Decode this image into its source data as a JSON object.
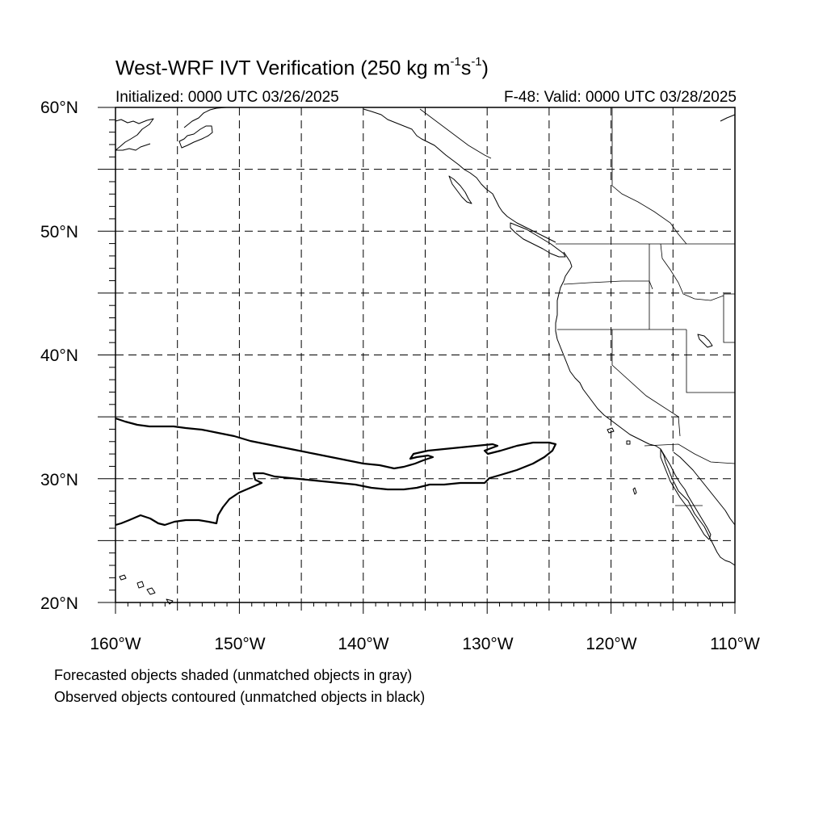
{
  "title": {
    "main": "West-WRF IVT Verification (250 kg m",
    "exp1": "-1",
    "mid": "s",
    "exp2": "-1",
    "end": ")"
  },
  "initialized": "Initialized: 0000 UTC 03/26/2025",
  "valid": "F-48: Valid: 0000 UTC 03/28/2025",
  "lat_labels": [
    "60°N",
    "50°N",
    "40°N",
    "30°N",
    "20°N"
  ],
  "lon_labels": [
    "160°W",
    "150°W",
    "140°W",
    "130°W",
    "120°W",
    "110°W"
  ],
  "notes": [
    "Forecasted objects shaded (unmatched objects in gray)",
    "Observed objects contoured (unmatched objects in black)"
  ],
  "map": {
    "lat_range": [
      20,
      60
    ],
    "lon_range": [
      -160,
      -110
    ],
    "grid_lat_step": 5,
    "grid_lon_step": 5,
    "grid_style": "dashed",
    "coastline_color": "#000000",
    "observed_object_color": "#000000"
  }
}
